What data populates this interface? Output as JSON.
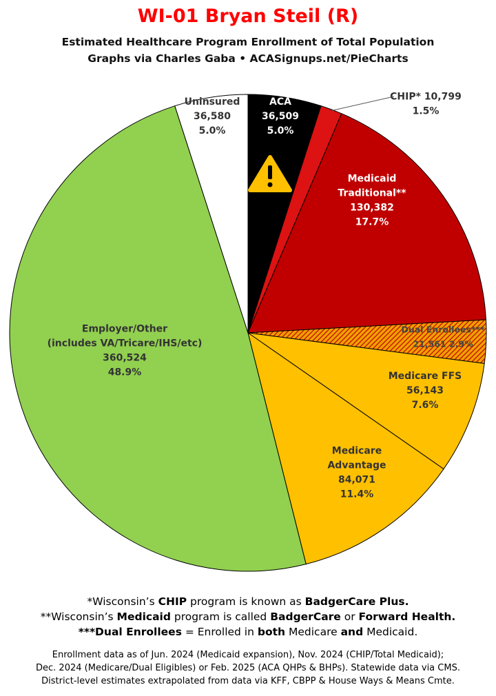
{
  "header": {
    "title": "WI-01 Bryan Steil (R)",
    "subtitle1": "Estimated Healthcare Program Enrollment of Total Population",
    "subtitle2": "Graphs via Charles Gaba   •   ACASignups.net/PieCharts"
  },
  "chart_data": {
    "type": "pie",
    "start": "12 o'clock, clockwise",
    "slices": [
      {
        "key": "aca",
        "lines": [
          "ACA",
          "36,509",
          "5.0%"
        ],
        "value": 36509,
        "percent": 5.0,
        "color": "#000000",
        "text_color": "#ffffff",
        "icon": "warning-icon"
      },
      {
        "key": "chip",
        "lines": [
          "CHIP* 10,799",
          "1.5%"
        ],
        "value": 10799,
        "percent": 1.5,
        "color": "#dd1212",
        "text_color": "#333333",
        "callout": true
      },
      {
        "key": "medicaid",
        "lines": [
          "Medicaid",
          "Traditional**",
          "130,382",
          "17.7%"
        ],
        "value": 130382,
        "percent": 17.7,
        "color": "#c00000",
        "text_color": "#ffffff"
      },
      {
        "key": "dual",
        "lines": [
          "Dual Enrollees***",
          "21,561 2.9%"
        ],
        "value": 21561,
        "percent": 2.9,
        "color": "#f0a000",
        "hatch": "#c00000",
        "text_color": "#444444"
      },
      {
        "key": "medicare-ffs",
        "lines": [
          "Medicare FFS",
          "56,143",
          "7.6%"
        ],
        "value": 56143,
        "percent": 7.6,
        "color": "#ffc000",
        "text_color": "#333333"
      },
      {
        "key": "medicare-advantage",
        "lines": [
          "Medicare",
          "Advantage",
          "84,071",
          "11.4%"
        ],
        "value": 84071,
        "percent": 11.4,
        "color": "#ffc000",
        "text_color": "#333333"
      },
      {
        "key": "employer",
        "lines": [
          "Employer/Other",
          "(includes VA/Tricare/IHS/etc)",
          "360,524",
          "48.9%"
        ],
        "value": 360524,
        "percent": 48.9,
        "color": "#92d050",
        "text_color": "#333333"
      },
      {
        "key": "uninsured",
        "lines": [
          "Uninsured",
          "36,580",
          "5.0%"
        ],
        "value": 36580,
        "percent": 5.0,
        "color": "#ffffff",
        "text_color": "#333333"
      }
    ]
  },
  "footnotes": {
    "chip_note": "*Wisconsin’s CHIP program is known as BadgerCare Plus.",
    "medicaid_note": "**Wisconsin’s Medicaid program is called BadgerCare or Forward Health.",
    "dual_note": "***Dual Enrollees = Enrolled in both Medicare and Medicaid."
  },
  "sources": {
    "line1": "Enrollment data as of Jun. 2024 (Medicaid expansion), Nov. 2024 (CHIP/Total Medicaid);",
    "line2": "Dec. 2024 (Medicare/Dual Eligibles) or Feb. 2025 (ACA QHPs & BHPs). Statewide data via CMS.",
    "line3": "District-level estimates extrapolated from data via KFF, CBPP & House Ways & Means Cmte."
  }
}
